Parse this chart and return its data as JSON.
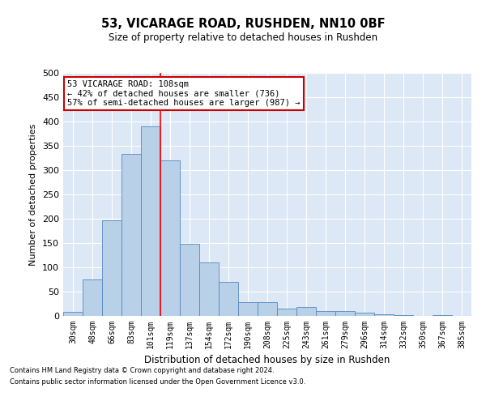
{
  "title": "53, VICARAGE ROAD, RUSHDEN, NN10 0BF",
  "subtitle": "Size of property relative to detached houses in Rushden",
  "xlabel": "Distribution of detached houses by size in Rushden",
  "ylabel": "Number of detached properties",
  "footnote1": "Contains HM Land Registry data © Crown copyright and database right 2024.",
  "footnote2": "Contains public sector information licensed under the Open Government Licence v3.0.",
  "categories": [
    "30sqm",
    "48sqm",
    "66sqm",
    "83sqm",
    "101sqm",
    "119sqm",
    "137sqm",
    "154sqm",
    "172sqm",
    "190sqm",
    "208sqm",
    "225sqm",
    "243sqm",
    "261sqm",
    "279sqm",
    "296sqm",
    "314sqm",
    "332sqm",
    "350sqm",
    "367sqm",
    "385sqm"
  ],
  "values": [
    8,
    75,
    197,
    333,
    390,
    320,
    148,
    110,
    70,
    28,
    28,
    15,
    18,
    10,
    10,
    6,
    3,
    1,
    0,
    1,
    0
  ],
  "bar_color": "#b8d0e8",
  "bar_edge_color": "#5588bb",
  "bg_color": "#dce8f5",
  "grid_color": "#ffffff",
  "red_line_x": 4.5,
  "annotation_text": "53 VICARAGE ROAD: 108sqm\n← 42% of detached houses are smaller (736)\n57% of semi-detached houses are larger (987) →",
  "annotation_box_color": "#ffffff",
  "annotation_box_edge": "#cc0000",
  "ylim": [
    0,
    500
  ],
  "yticks": [
    0,
    50,
    100,
    150,
    200,
    250,
    300,
    350,
    400,
    450,
    500
  ]
}
